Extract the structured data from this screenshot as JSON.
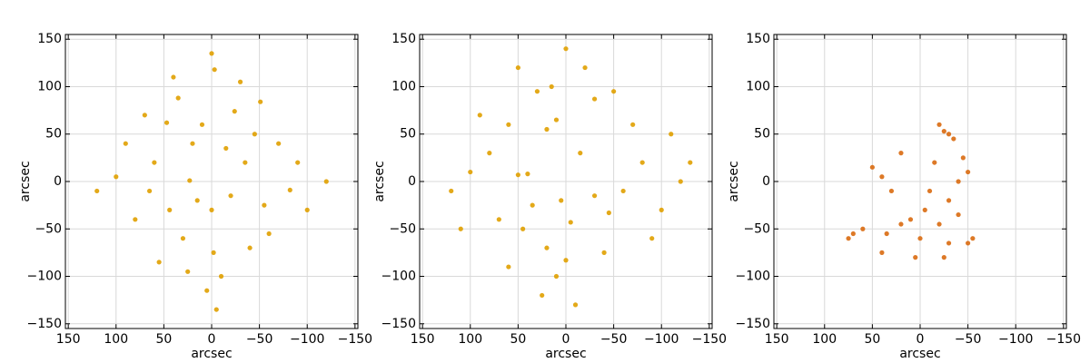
{
  "chart_data": [
    {
      "type": "scatter",
      "xlabel": "arcsec",
      "ylabel": "arcsec",
      "color": "#e0a000",
      "grid": true,
      "xlim": [
        153,
        -153
      ],
      "ylim": [
        -155,
        155
      ],
      "xticks": [
        150,
        100,
        50,
        0,
        {
          "value": -50,
          "label": "−50"
        },
        {
          "value": -100,
          "label": "−100"
        },
        {
          "value": -150,
          "label": "−150"
        }
      ],
      "yticks": [
        {
          "value": -150,
          "label": "−150"
        },
        {
          "value": -100,
          "label": "−100"
        },
        {
          "value": -50,
          "label": "−50"
        },
        0,
        50,
        100,
        150
      ],
      "x": [
        -2,
        23,
        -24,
        -51,
        -82,
        44,
        -3,
        35,
        47,
        10,
        -35,
        20,
        -55,
        0,
        60,
        -10,
        80,
        100,
        -100,
        5,
        30,
        -40,
        -70,
        70,
        -20,
        15,
        -60,
        55,
        -30,
        40,
        90,
        -90,
        120,
        -120,
        0,
        -5,
        25,
        -45,
        65,
        -15
      ],
      "values": [
        -75,
        1,
        74,
        84,
        -9,
        -30,
        118,
        88,
        62,
        60,
        20,
        40,
        -25,
        -30,
        20,
        -100,
        -40,
        5,
        -30,
        -115,
        -60,
        -70,
        40,
        70,
        -15,
        -20,
        -55,
        -85,
        105,
        110,
        40,
        20,
        -10,
        0,
        135,
        -135,
        -95,
        50,
        -10,
        35
      ]
    },
    {
      "type": "scatter",
      "xlabel": "arcsec",
      "ylabel": "arcsec",
      "color": "#e0a000",
      "grid": true,
      "xlim": [
        153,
        -153
      ],
      "ylim": [
        -155,
        155
      ],
      "xticks": [
        150,
        100,
        50,
        0,
        {
          "value": -50,
          "label": "−50"
        },
        {
          "value": -100,
          "label": "−100"
        },
        {
          "value": -150,
          "label": "−150"
        }
      ],
      "yticks": [
        {
          "value": -150,
          "label": "−150"
        },
        {
          "value": -100,
          "label": "−100"
        },
        {
          "value": -50,
          "label": "−50"
        },
        0,
        50,
        100,
        150
      ],
      "x": [
        50,
        40,
        -30,
        20,
        10,
        0,
        -5,
        -30,
        60,
        -45,
        15,
        30,
        -60,
        80,
        -80,
        45,
        -40,
        25,
        -10,
        70,
        -100,
        100,
        120,
        -120,
        -130,
        0,
        -20,
        60,
        -70,
        90,
        -90,
        5,
        -15,
        35,
        110,
        -110,
        20,
        -50,
        50,
        10
      ],
      "values": [
        7,
        8,
        87,
        55,
        65,
        -83,
        -43,
        -15,
        60,
        -33,
        100,
        95,
        -10,
        30,
        20,
        -50,
        -75,
        -120,
        -130,
        -40,
        -30,
        10,
        -10,
        0,
        20,
        140,
        120,
        -90,
        60,
        70,
        -60,
        -20,
        30,
        -25,
        -50,
        50,
        -70,
        95,
        120,
        -100
      ]
    },
    {
      "type": "scatter",
      "xlabel": "arcsec",
      "ylabel": "arcsec",
      "color": "#d96a10",
      "grid": true,
      "xlim": [
        153,
        -153
      ],
      "ylim": [
        -155,
        155
      ],
      "xticks": [
        150,
        100,
        50,
        0,
        {
          "value": -50,
          "label": "−50"
        },
        {
          "value": -100,
          "label": "−100"
        },
        {
          "value": -150,
          "label": "−150"
        }
      ],
      "yticks": [
        {
          "value": -150,
          "label": "−150"
        },
        {
          "value": -100,
          "label": "−100"
        },
        {
          "value": -50,
          "label": "−50"
        },
        0,
        50,
        100,
        150
      ],
      "x": [
        -20,
        -25,
        -30,
        40,
        30,
        -30,
        -40,
        -20,
        20,
        70,
        60,
        40,
        -30,
        -50,
        -55,
        0,
        10,
        -10,
        -40,
        -50,
        20,
        -35,
        50,
        -5,
        35,
        -15,
        -45,
        75,
        5,
        -25
      ],
      "values": [
        60,
        53,
        50,
        5,
        -10,
        -20,
        -35,
        -45,
        -45,
        -55,
        -50,
        -75,
        -65,
        -65,
        -60,
        -60,
        -40,
        -10,
        0,
        10,
        30,
        45,
        15,
        -30,
        -55,
        20,
        25,
        -60,
        -80,
        -80
      ]
    }
  ]
}
